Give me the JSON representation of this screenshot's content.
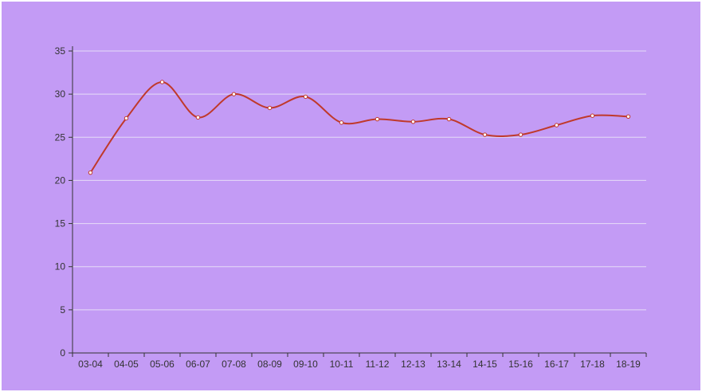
{
  "chart_data": {
    "type": "line",
    "categories": [
      "03-04",
      "04-05",
      "05-06",
      "06-07",
      "07-08",
      "08-09",
      "09-10",
      "10-11",
      "11-12",
      "12-13",
      "13-14",
      "14-15",
      "15-16",
      "16-17",
      "17-18",
      "18-19"
    ],
    "series": [
      {
        "values": [
          20.9,
          27.2,
          31.4,
          27.3,
          30.0,
          28.4,
          29.7,
          26.7,
          27.1,
          26.8,
          27.1,
          25.3,
          25.3,
          26.4,
          27.5,
          27.4
        ]
      }
    ],
    "ylim": [
      0,
      35
    ],
    "yticks": [
      0,
      5,
      10,
      15,
      20,
      25,
      30,
      35
    ],
    "grid": true,
    "line_color": "#c0392b",
    "background": "#c39bf5"
  }
}
